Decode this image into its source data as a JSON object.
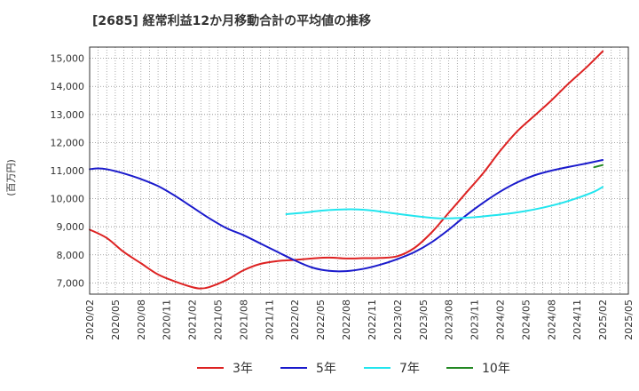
{
  "chart_data": {
    "type": "line",
    "title": "[2685]  経常利益12か月移動合計の平均値の推移",
    "ylabel": "(百万円)",
    "xlabel": "",
    "ylim": [
      6600,
      15400
    ],
    "yticks": [
      7000,
      8000,
      9000,
      10000,
      11000,
      12000,
      13000,
      14000,
      15000
    ],
    "ytick_labels": [
      "7,000",
      "8,000",
      "9,000",
      "10,000",
      "11,000",
      "12,000",
      "13,000",
      "14,000",
      "15,000"
    ],
    "x_range": [
      "2020/02",
      "2025/05"
    ],
    "xticks": [
      "2020/02",
      "2020/05",
      "2020/08",
      "2020/11",
      "2021/02",
      "2021/05",
      "2021/08",
      "2021/11",
      "2022/02",
      "2022/05",
      "2022/08",
      "2022/11",
      "2023/02",
      "2023/05",
      "2023/08",
      "2023/11",
      "2024/02",
      "2024/05",
      "2024/08",
      "2024/11",
      "2025/02",
      "2025/05"
    ],
    "grid": true,
    "legend_position": "bottom",
    "series": [
      {
        "name": "3年",
        "color": "#dd2222",
        "points": [
          [
            "2020/02",
            8900
          ],
          [
            "2020/04",
            8600
          ],
          [
            "2020/06",
            8100
          ],
          [
            "2020/08",
            7700
          ],
          [
            "2020/10",
            7300
          ],
          [
            "2020/12",
            7050
          ],
          [
            "2021/02",
            6850
          ],
          [
            "2021/03",
            6800
          ],
          [
            "2021/04",
            6850
          ],
          [
            "2021/06",
            7100
          ],
          [
            "2021/08",
            7450
          ],
          [
            "2021/10",
            7680
          ],
          [
            "2021/12",
            7780
          ],
          [
            "2022/02",
            7820
          ],
          [
            "2022/04",
            7870
          ],
          [
            "2022/06",
            7900
          ],
          [
            "2022/08",
            7870
          ],
          [
            "2022/10",
            7880
          ],
          [
            "2022/12",
            7890
          ],
          [
            "2023/02",
            7950
          ],
          [
            "2023/04",
            8250
          ],
          [
            "2023/06",
            8800
          ],
          [
            "2023/08",
            9500
          ],
          [
            "2023/10",
            10200
          ],
          [
            "2023/12",
            10900
          ],
          [
            "2024/02",
            11700
          ],
          [
            "2024/04",
            12400
          ],
          [
            "2024/06",
            12950
          ],
          [
            "2024/08",
            13500
          ],
          [
            "2024/10",
            14100
          ],
          [
            "2024/12",
            14650
          ],
          [
            "2025/02",
            15250
          ]
        ]
      },
      {
        "name": "5年",
        "color": "#1a1acc",
        "points": [
          [
            "2020/02",
            11050
          ],
          [
            "2020/03",
            11080
          ],
          [
            "2020/04",
            11050
          ],
          [
            "2020/06",
            10900
          ],
          [
            "2020/08",
            10700
          ],
          [
            "2020/10",
            10450
          ],
          [
            "2020/12",
            10100
          ],
          [
            "2021/02",
            9700
          ],
          [
            "2021/04",
            9300
          ],
          [
            "2021/06",
            8950
          ],
          [
            "2021/08",
            8700
          ],
          [
            "2021/10",
            8400
          ],
          [
            "2021/12",
            8100
          ],
          [
            "2022/02",
            7800
          ],
          [
            "2022/04",
            7550
          ],
          [
            "2022/06",
            7430
          ],
          [
            "2022/08",
            7420
          ],
          [
            "2022/10",
            7500
          ],
          [
            "2022/12",
            7650
          ],
          [
            "2023/02",
            7850
          ],
          [
            "2023/04",
            8100
          ],
          [
            "2023/06",
            8450
          ],
          [
            "2023/08",
            8900
          ],
          [
            "2023/10",
            9400
          ],
          [
            "2023/12",
            9850
          ],
          [
            "2024/02",
            10250
          ],
          [
            "2024/04",
            10580
          ],
          [
            "2024/06",
            10830
          ],
          [
            "2024/08",
            11000
          ],
          [
            "2024/10",
            11130
          ],
          [
            "2024/12",
            11250
          ],
          [
            "2025/02",
            11380
          ]
        ]
      },
      {
        "name": "7年",
        "color": "#22e5ee",
        "points": [
          [
            "2022/01",
            9450
          ],
          [
            "2022/03",
            9500
          ],
          [
            "2022/05",
            9570
          ],
          [
            "2022/07",
            9610
          ],
          [
            "2022/09",
            9620
          ],
          [
            "2022/11",
            9580
          ],
          [
            "2023/01",
            9500
          ],
          [
            "2023/03",
            9420
          ],
          [
            "2023/05",
            9350
          ],
          [
            "2023/07",
            9300
          ],
          [
            "2023/09",
            9310
          ],
          [
            "2023/11",
            9340
          ],
          [
            "2024/01",
            9400
          ],
          [
            "2024/03",
            9470
          ],
          [
            "2024/05",
            9560
          ],
          [
            "2024/07",
            9680
          ],
          [
            "2024/09",
            9830
          ],
          [
            "2024/11",
            10020
          ],
          [
            "2025/01",
            10250
          ],
          [
            "2025/02",
            10420
          ]
        ]
      },
      {
        "name": "10年",
        "color": "#228822",
        "points": [
          [
            "2025/01",
            11120
          ],
          [
            "2025/02",
            11200
          ]
        ]
      }
    ]
  }
}
